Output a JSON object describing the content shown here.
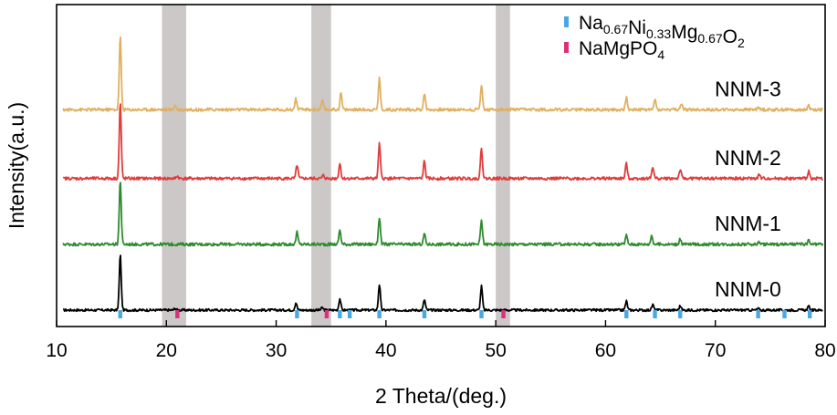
{
  "chart_data": {
    "type": "line",
    "title": "",
    "xlabel": "2 Theta/(deg.)",
    "ylabel": "Intensity(a.u.)",
    "xlim": [
      10,
      80
    ],
    "x_ticks": [
      10,
      20,
      30,
      40,
      50,
      60,
      70,
      80
    ],
    "y_ticks_shown": false,
    "grid": false,
    "legend_position": "top-right",
    "shaded_regions": [
      [
        19.6,
        21.8
      ],
      [
        33.2,
        35.0
      ],
      [
        50.0,
        51.3
      ]
    ],
    "series": [
      {
        "name": "NNM-0",
        "color": "#000000",
        "baseline": 0.0,
        "noise": 0.004,
        "peaks": [
          [
            15.8,
            0.185
          ],
          [
            20.8,
            0.006
          ],
          [
            31.8,
            0.025
          ],
          [
            34.2,
            0.008
          ],
          [
            35.8,
            0.038
          ],
          [
            39.4,
            0.085
          ],
          [
            43.5,
            0.035
          ],
          [
            48.7,
            0.08
          ],
          [
            61.9,
            0.03
          ],
          [
            64.3,
            0.018
          ],
          [
            66.8,
            0.014
          ],
          [
            73.9,
            0.005
          ],
          [
            78.5,
            0.012
          ]
        ]
      },
      {
        "name": "NNM-1",
        "color": "#2e8b2e",
        "baseline": 0.22,
        "noise": 0.005,
        "peaks": [
          [
            15.8,
            0.215
          ],
          [
            31.9,
            0.04
          ],
          [
            35.8,
            0.048
          ],
          [
            39.4,
            0.09
          ],
          [
            43.5,
            0.036
          ],
          [
            48.7,
            0.08
          ],
          [
            61.9,
            0.03
          ],
          [
            64.2,
            0.03
          ],
          [
            66.8,
            0.016
          ],
          [
            74.0,
            0.008
          ],
          [
            78.5,
            0.012
          ]
        ]
      },
      {
        "name": "NNM-2",
        "color": "#e03c3c",
        "baseline": 0.44,
        "noise": 0.005,
        "peaks": [
          [
            15.8,
            0.255
          ],
          [
            21.0,
            0.008
          ],
          [
            31.9,
            0.045
          ],
          [
            34.3,
            0.01
          ],
          [
            35.8,
            0.05
          ],
          [
            39.4,
            0.115
          ],
          [
            43.5,
            0.058
          ],
          [
            48.7,
            0.102
          ],
          [
            61.9,
            0.05
          ],
          [
            64.3,
            0.04
          ],
          [
            66.8,
            0.03
          ],
          [
            74.0,
            0.012
          ],
          [
            78.5,
            0.025
          ]
        ]
      },
      {
        "name": "NNM-3",
        "color": "#e0b060",
        "baseline": 0.67,
        "noise": 0.005,
        "peaks": [
          [
            15.8,
            0.245
          ],
          [
            20.8,
            0.015
          ],
          [
            31.8,
            0.038
          ],
          [
            34.2,
            0.03
          ],
          [
            35.9,
            0.055
          ],
          [
            39.4,
            0.105
          ],
          [
            43.5,
            0.055
          ],
          [
            48.7,
            0.085
          ],
          [
            61.9,
            0.04
          ],
          [
            64.5,
            0.035
          ],
          [
            66.9,
            0.02
          ],
          [
            73.9,
            0.01
          ],
          [
            78.5,
            0.015
          ]
        ]
      }
    ],
    "reference_markers": [
      {
        "name": "Na0.67Ni0.33Mg0.67O2",
        "label_parts": [
          [
            "Na",
            ""
          ],
          [
            "0.67",
            "sub"
          ],
          [
            "Ni",
            ""
          ],
          [
            "0.33",
            "sub"
          ],
          [
            "Mg",
            ""
          ],
          [
            "0.67",
            "sub"
          ],
          [
            "O",
            ""
          ],
          [
            "2",
            "sub"
          ]
        ],
        "color": "#4aa8e0",
        "positions": [
          15.8,
          31.9,
          35.8,
          36.7,
          39.4,
          43.5,
          48.7,
          61.9,
          64.5,
          66.8,
          73.9,
          76.3,
          78.6
        ]
      },
      {
        "name": "NaMgPO4",
        "label_parts": [
          [
            "NaMgPO",
            ""
          ],
          [
            "4",
            "sub"
          ]
        ],
        "color": "#d8327a",
        "positions": [
          21.0,
          34.6,
          50.7
        ]
      }
    ]
  }
}
